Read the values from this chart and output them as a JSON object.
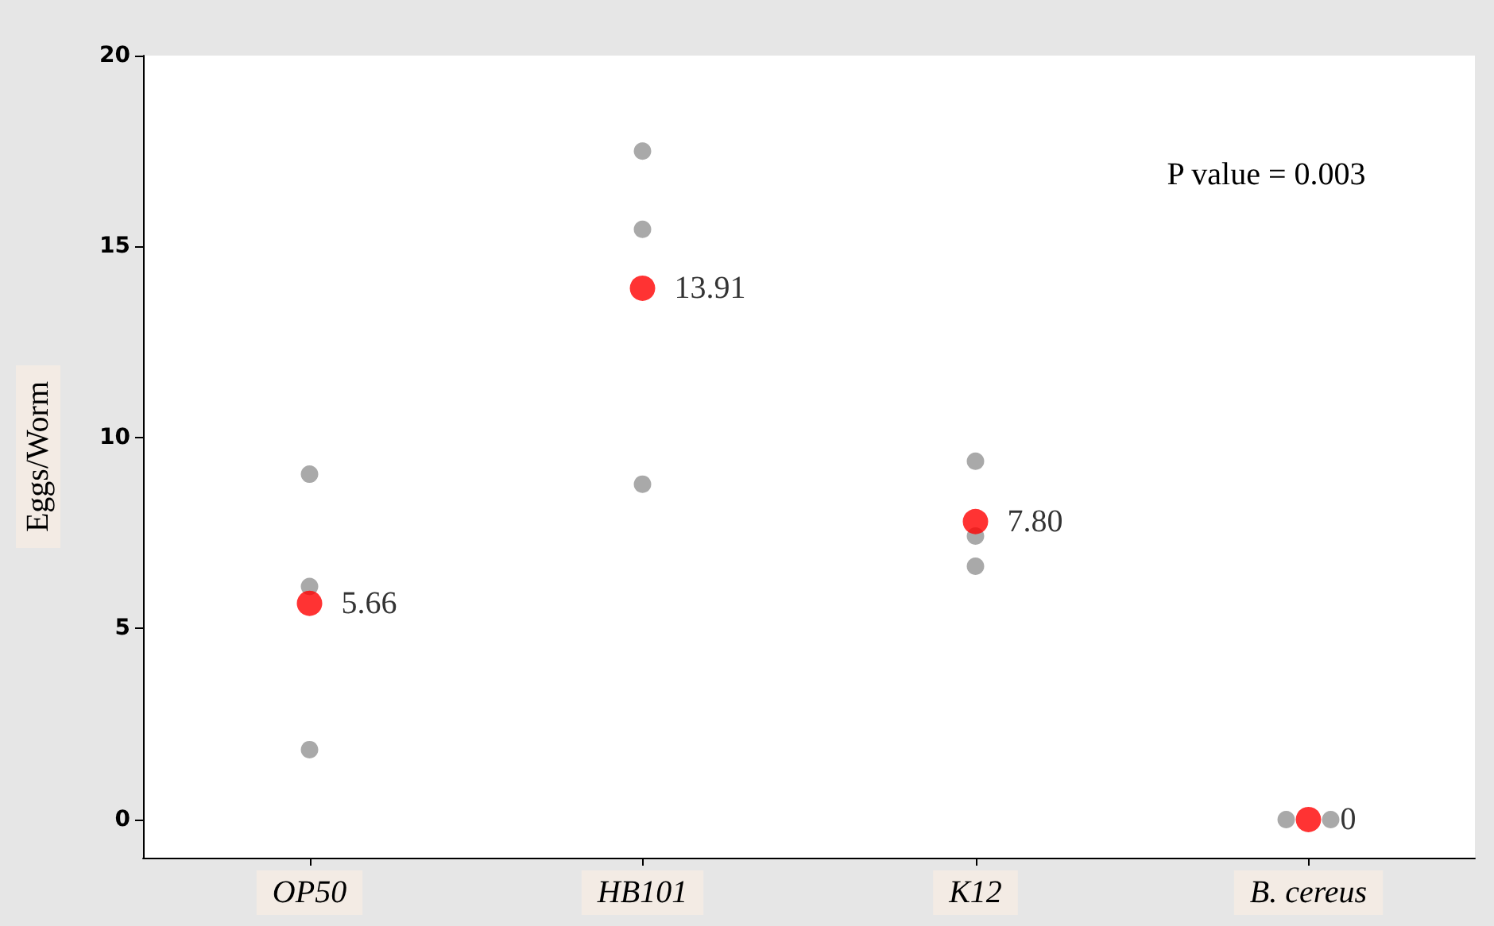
{
  "chart_data": {
    "type": "scatter",
    "ylabel": "Eggs/Worm",
    "categories": [
      "OP50",
      "HB101",
      "K12",
      "B. cereus"
    ],
    "series": [
      {
        "color": "#939393",
        "x": [
          "OP50",
          "OP50",
          "OP50",
          "HB101",
          "HB101",
          "HB101",
          "K12",
          "K12",
          "K12",
          "B. cereus",
          "B. cereus",
          "B. cereus"
        ],
        "values": [
          9.04,
          6.1,
          1.83,
          17.5,
          15.45,
          8.78,
          9.38,
          7.42,
          6.63,
          0,
          null,
          0
        ]
      },
      {
        "color": "#ff0000",
        "x": [
          "OP50",
          "HB101",
          "K12",
          "B. cereus"
        ],
        "values": [
          5.66,
          13.91,
          7.8,
          0
        ],
        "value_labels": [
          "5.66",
          "13.91",
          "7.80",
          "0"
        ]
      }
    ],
    "ylim": [
      -1,
      20
    ],
    "yticks": [
      0,
      5,
      10,
      15,
      20
    ],
    "marker": "circle",
    "annotations": [
      "P value = 0.003"
    ]
  }
}
